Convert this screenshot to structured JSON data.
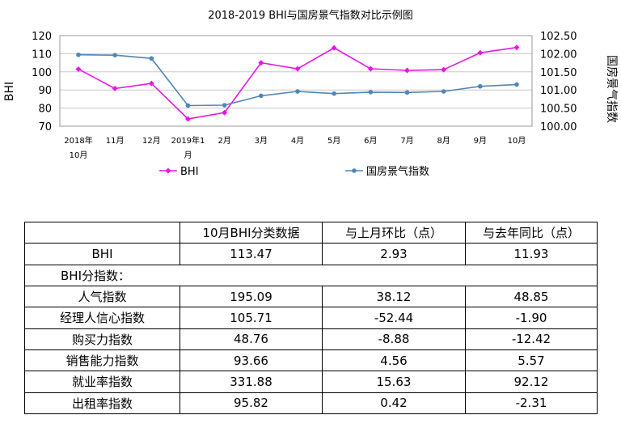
{
  "chart_data": {
    "type": "line",
    "title": "2018-2019 BHI与国房景气指数对比示例图",
    "ylabel": "BHI",
    "y2label": "国房景气指数",
    "ylim": [
      70,
      120
    ],
    "y2lim": [
      100.0,
      102.5
    ],
    "yticks": [
      "70",
      "80",
      "90",
      "100",
      "110",
      "120"
    ],
    "y2ticks": [
      "100.00",
      "100.50",
      "101.00",
      "101.50",
      "102.00",
      "102.50"
    ],
    "categories": [
      [
        "2018年",
        "10月"
      ],
      [
        "11月"
      ],
      [
        "12月"
      ],
      [
        "2019年1",
        "月"
      ],
      [
        "2月"
      ],
      [
        "3月"
      ],
      [
        "4月"
      ],
      [
        "5月"
      ],
      [
        "6月"
      ],
      [
        "7月"
      ],
      [
        "8月"
      ],
      [
        "9月"
      ],
      [
        "10月"
      ]
    ],
    "grid": true,
    "legend_position": "bottom",
    "series": [
      {
        "name": "BHI",
        "axis": "left",
        "color": "#e815e8",
        "marker": "diamond",
        "values": [
          101.5,
          90.8,
          93.6,
          74.0,
          77.5,
          105.0,
          101.7,
          113.2,
          101.7,
          100.8,
          101.2,
          110.5,
          113.47
        ]
      },
      {
        "name": "国房景气指数",
        "axis": "right",
        "color": "#4f87b7",
        "marker": "circle",
        "values": [
          101.97,
          101.96,
          101.87,
          100.57,
          100.58,
          100.84,
          100.96,
          100.9,
          100.94,
          100.93,
          100.96,
          101.1,
          101.15
        ]
      }
    ]
  },
  "table": {
    "header": [
      "",
      "10月BHI分类数据",
      "与上月环比（点）",
      "与去年同比（点）"
    ],
    "bhi_row": [
      "BHI",
      "113.47",
      "2.93",
      "11.93"
    ],
    "sub_title": "BHI分指数：",
    "rows": [
      [
        "人气指数",
        "195.09",
        "38.12",
        "48.85"
      ],
      [
        "经理人信心指数",
        "105.71",
        "-52.44",
        "-1.90"
      ],
      [
        "购买力指数",
        "48.76",
        "-8.88",
        "-12.42"
      ],
      [
        "销售能力指数",
        "93.66",
        "4.56",
        "5.57"
      ],
      [
        "就业率指数",
        "331.88",
        "15.63",
        "92.12"
      ],
      [
        "出租率指数",
        "95.82",
        "0.42",
        "-2.31"
      ]
    ]
  }
}
